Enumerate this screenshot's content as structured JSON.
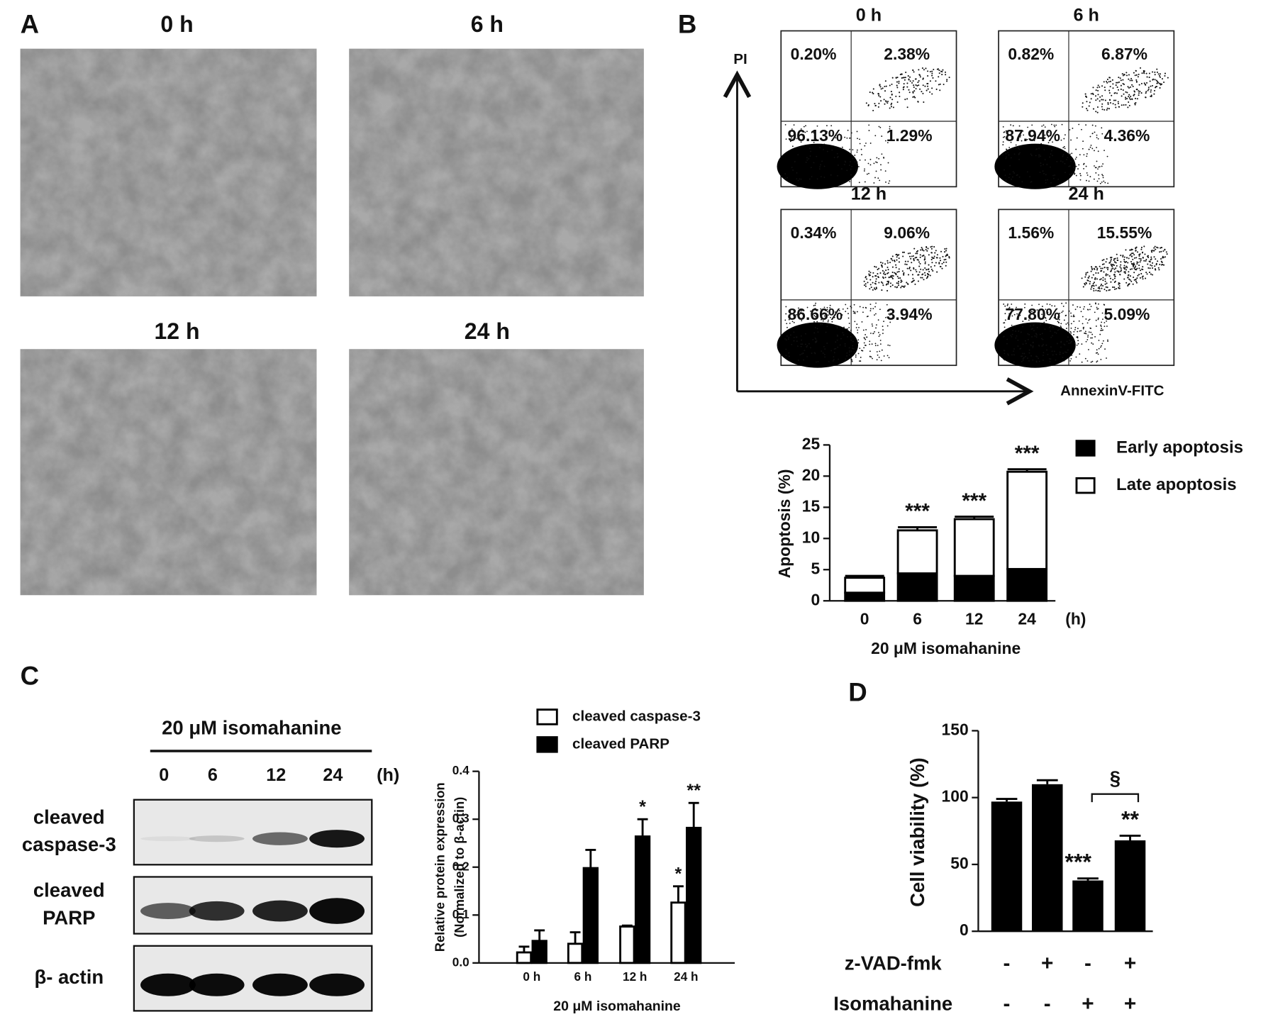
{
  "panels": {
    "A": {
      "label": "A",
      "images": [
        {
          "title": "0 h"
        },
        {
          "title": "6 h"
        },
        {
          "title": "12 h"
        },
        {
          "title": "24 h"
        }
      ]
    },
    "B": {
      "label": "B",
      "flow": {
        "y_axis": "PI",
        "x_axis": "AnnexinV-FITC",
        "plots": [
          {
            "title": "0 h",
            "quadrants": [
              "0.20%",
              "2.38%",
              "96.13%",
              "1.29%"
            ]
          },
          {
            "title": "6 h",
            "quadrants": [
              "0.82%",
              "6.87%",
              "87.94%",
              "4.36%"
            ]
          },
          {
            "title": "12 h",
            "quadrants": [
              "0.34%",
              "9.06%",
              "86.66%",
              "3.94%"
            ]
          },
          {
            "title": "24 h",
            "quadrants": [
              "1.56%",
              "15.55%",
              "77.80%",
              "5.09%"
            ]
          }
        ]
      }
    },
    "C": {
      "label": "C",
      "blot": {
        "treatment": "20 μM isomahanine",
        "times": [
          "0",
          "6",
          "12",
          "24"
        ],
        "unit": "(h)",
        "rows": [
          [
            "cleaved",
            "caspase-3"
          ],
          [
            "cleaved",
            "PARP"
          ],
          [
            "β- actin"
          ]
        ]
      }
    },
    "D": {
      "label": "D"
    }
  },
  "chart_data": [
    {
      "type": "stacked_bar",
      "ylabel": "Apoptosis (%)",
      "xlabel": "20 μM isomahanine",
      "x_unit": "(h)",
      "categories": [
        "0",
        "6",
        "12",
        "24"
      ],
      "series": [
        {
          "name": "Early apoptosis",
          "color": "#000000",
          "values": [
            1.3,
            4.4,
            4.0,
            5.1
          ]
        },
        {
          "name": "Late apoptosis",
          "color": "#ffffff",
          "values": [
            2.4,
            6.9,
            9.1,
            15.6
          ],
          "errors": [
            0.3,
            0.5,
            0.4,
            0.4
          ]
        }
      ],
      "annotations": [
        null,
        "***",
        "***",
        "***"
      ],
      "ylim": [
        0,
        25
      ],
      "yticks": [
        0,
        5,
        10,
        15,
        20,
        25
      ],
      "legend": "right"
    },
    {
      "type": "grouped_bar",
      "ylabel": [
        "Relative protein expression",
        "(Normalized to β-actin)"
      ],
      "xlabel": "20 μM isomahanine",
      "categories": [
        "0 h",
        "6 h",
        "12 h",
        "24 h"
      ],
      "series": [
        {
          "name": "cleaved caspase-3",
          "color": "#ffffff",
          "values": [
            0.022,
            0.04,
            0.076,
            0.126
          ],
          "errors": [
            0.012,
            0.024,
            0.002,
            0.034
          ],
          "annotations": [
            null,
            null,
            null,
            "*"
          ]
        },
        {
          "name": "cleaved PARP",
          "color": "#000000",
          "values": [
            0.046,
            0.198,
            0.264,
            0.282
          ],
          "errors": [
            0.022,
            0.038,
            0.036,
            0.052
          ],
          "annotations": [
            null,
            null,
            "*",
            "**"
          ]
        }
      ],
      "ylim": [
        0,
        0.4
      ],
      "yticks": [
        {
          "value": 0,
          "label": "0.0"
        },
        0.1,
        0.2,
        0.3,
        0.4
      ],
      "legend": "top"
    },
    {
      "type": "bar",
      "ylabel": "Cell viability (%)",
      "color": "#000000",
      "values": [
        97,
        110,
        38,
        68
      ],
      "errors": [
        2,
        3,
        1.5,
        3.5
      ],
      "annotations": [
        null,
        null,
        "***",
        "**"
      ],
      "bracket_label": "§",
      "conditions": [
        {
          "name": "z-VAD-fmk",
          "values": [
            "-",
            "+",
            "-",
            "+"
          ]
        },
        {
          "name": "Isomahanine",
          "values": [
            "-",
            "-",
            "+",
            "+"
          ]
        }
      ],
      "ylim": [
        0,
        150
      ],
      "yticks": [
        0,
        50,
        100,
        150
      ]
    }
  ]
}
